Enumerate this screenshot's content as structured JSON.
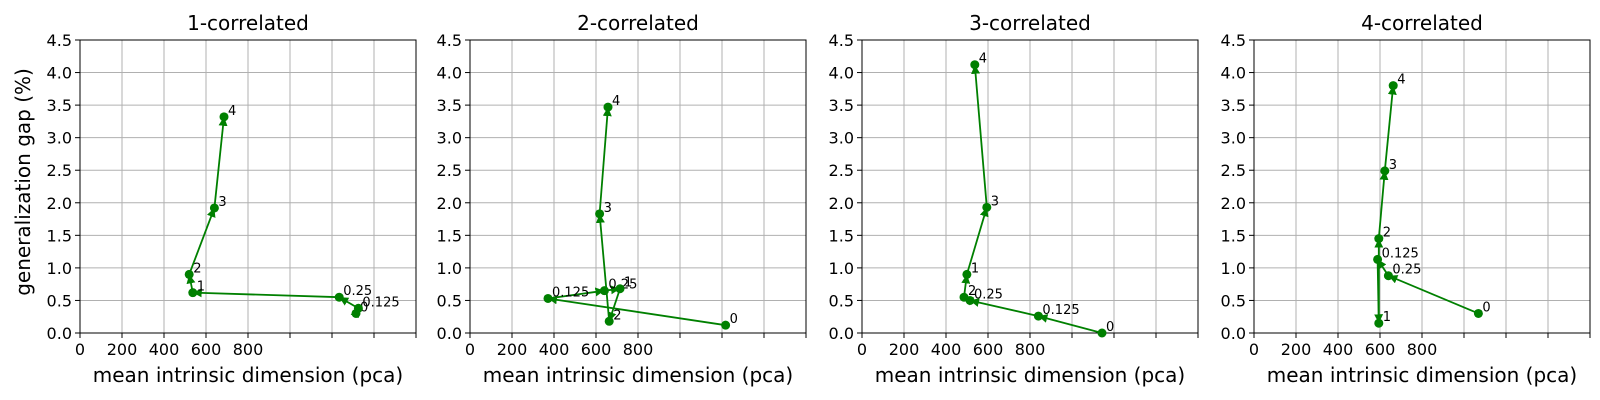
{
  "figure": {
    "ylabel": "generalization gap (%)",
    "series_color": "#008000"
  },
  "chart_data": [
    {
      "type": "line",
      "title": "1-correlated",
      "xlabel": "mean intrinsic dimension (pca)",
      "ylabel": "generalization gap (%)",
      "xlim": [
        0,
        1400
      ],
      "ylim": [
        0,
        4.5
      ],
      "xticks": [
        "0",
        "200",
        "400",
        "600",
        "800",
        "",
        "",
        ""
      ],
      "yticks": [
        "0.0",
        "0.5",
        "1.0",
        "1.5",
        "2.0",
        "2.5",
        "3.0",
        "3.5",
        "4.0",
        "4.5"
      ],
      "grid": true,
      "points": [
        {
          "label": "0",
          "x": 1150,
          "y": 0.3
        },
        {
          "label": "0.125",
          "x": 1160,
          "y": 0.38
        },
        {
          "label": "0.25",
          "x": 1080,
          "y": 0.55
        },
        {
          "label": "1",
          "x": 470,
          "y": 0.62
        },
        {
          "label": "2",
          "x": 455,
          "y": 0.9
        },
        {
          "label": "3",
          "x": 560,
          "y": 1.92
        },
        {
          "label": "4",
          "x": 600,
          "y": 3.32
        }
      ]
    },
    {
      "type": "line",
      "title": "2-correlated",
      "xlabel": "mean intrinsic dimension (pca)",
      "ylabel": "",
      "xlim": [
        0,
        1400
      ],
      "ylim": [
        0,
        4.5
      ],
      "xticks": [
        "0",
        "200",
        "400",
        "600",
        "800",
        "",
        "",
        ""
      ],
      "yticks": [
        "0.0",
        "0.5",
        "1.0",
        "1.5",
        "2.0",
        "2.5",
        "3.0",
        "3.5",
        "4.0",
        "4.5"
      ],
      "grid": true,
      "points": [
        {
          "label": "0",
          "x": 1065,
          "y": 0.12
        },
        {
          "label": "0.125",
          "x": 325,
          "y": 0.53
        },
        {
          "label": "0.25",
          "x": 560,
          "y": 0.65
        },
        {
          "label": "1",
          "x": 625,
          "y": 0.68
        },
        {
          "label": "2",
          "x": 580,
          "y": 0.18
        },
        {
          "label": "3",
          "x": 540,
          "y": 1.83
        },
        {
          "label": "4",
          "x": 575,
          "y": 3.47
        }
      ]
    },
    {
      "type": "line",
      "title": "3-correlated",
      "xlabel": "mean intrinsic dimension (pca)",
      "ylabel": "",
      "xlim": [
        0,
        1400
      ],
      "ylim": [
        0,
        4.5
      ],
      "xticks": [
        "0",
        "200",
        "400",
        "600",
        "800",
        "",
        "",
        ""
      ],
      "yticks": [
        "0.0",
        "0.5",
        "1.0",
        "1.5",
        "2.0",
        "2.5",
        "3.0",
        "3.5",
        "4.0",
        "4.5"
      ],
      "grid": true,
      "points": [
        {
          "label": "0",
          "x": 1000,
          "y": 0.0
        },
        {
          "label": "0.125",
          "x": 735,
          "y": 0.26
        },
        {
          "label": "0.25",
          "x": 450,
          "y": 0.5
        },
        {
          "label": "2",
          "x": 425,
          "y": 0.55
        },
        {
          "label": "1",
          "x": 437,
          "y": 0.9
        },
        {
          "label": "3",
          "x": 520,
          "y": 1.93
        },
        {
          "label": "4",
          "x": 470,
          "y": 4.12
        }
      ]
    },
    {
      "type": "line",
      "title": "4-correlated",
      "xlabel": "mean intrinsic dimension (pca)",
      "ylabel": "",
      "xlim": [
        0,
        1400
      ],
      "ylim": [
        0,
        4.5
      ],
      "xticks": [
        "0",
        "200",
        "400",
        "600",
        "800",
        "",
        "",
        ""
      ],
      "yticks": [
        "0.0",
        "0.5",
        "1.0",
        "1.5",
        "2.0",
        "2.5",
        "3.0",
        "3.5",
        "4.0",
        "4.5"
      ],
      "grid": true,
      "points": [
        {
          "label": "0",
          "x": 935,
          "y": 0.3
        },
        {
          "label": "0.25",
          "x": 560,
          "y": 0.88
        },
        {
          "label": "0.125",
          "x": 515,
          "y": 1.13
        },
        {
          "label": "1",
          "x": 520,
          "y": 0.15
        },
        {
          "label": "2",
          "x": 520,
          "y": 1.45
        },
        {
          "label": "3",
          "x": 545,
          "y": 2.49
        },
        {
          "label": "4",
          "x": 580,
          "y": 3.8
        }
      ]
    }
  ]
}
